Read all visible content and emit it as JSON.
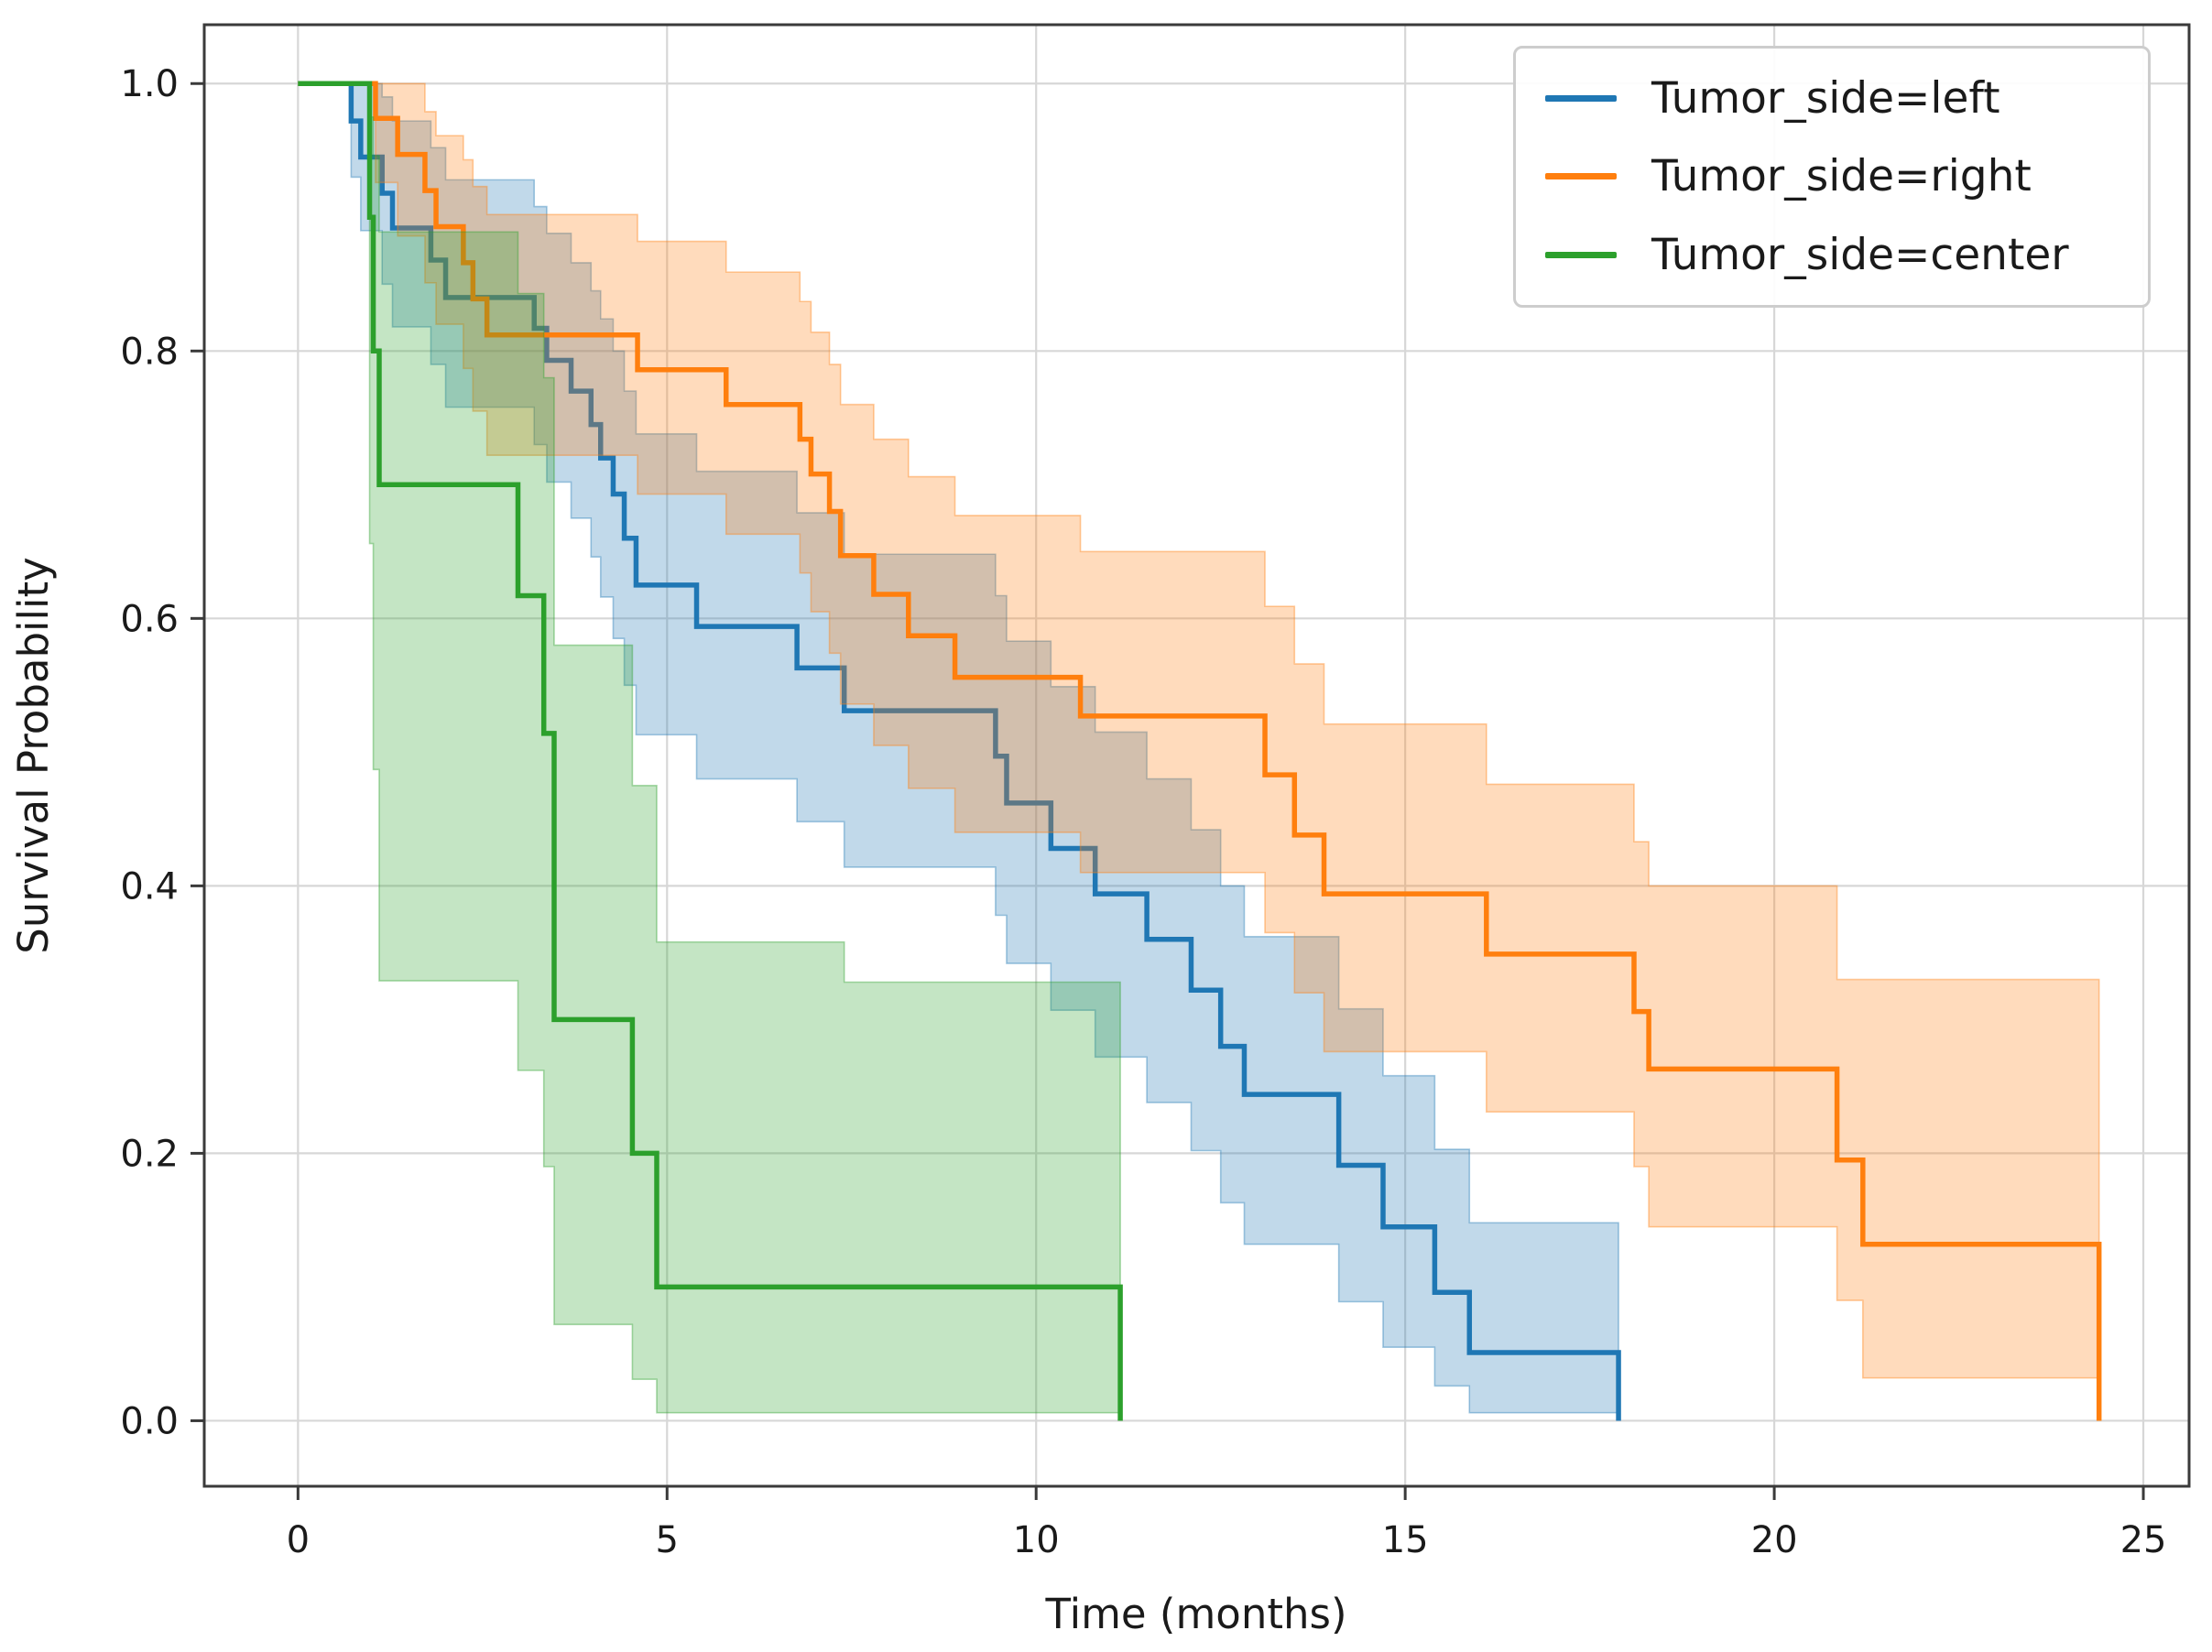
{
  "chart_data": {
    "type": "line",
    "subtype": "kaplan-meier-step-with-confidence-bands",
    "title": "",
    "xlabel": "Time (months)",
    "ylabel": "Survival Probability",
    "xlim": [
      -1.27,
      25.62
    ],
    "ylim": [
      -0.049,
      1.044
    ],
    "x_ticks": [
      0,
      5,
      10,
      15,
      20,
      25
    ],
    "x_tick_labels": [
      "0",
      "5",
      "10",
      "15",
      "20",
      "25"
    ],
    "y_ticks": [
      0.0,
      0.2,
      0.4,
      0.6,
      0.8,
      1.0
    ],
    "y_tick_labels": [
      "0.0",
      "0.2",
      "0.4",
      "0.6",
      "0.8",
      "1.0"
    ],
    "grid": true,
    "legend_position": "upper right",
    "background_color": "#ffffff",
    "grid_color": "#d7d7d7",
    "spine_color": "#3a3a3a",
    "text_color": "#1a1a1a",
    "band_fill_alpha": 0.28,
    "series": [
      {
        "key": "left",
        "name": "Tumor_side=left",
        "color": "#1f77b4",
        "end_time": 17.89,
        "steps": [
          {
            "t": 0.0,
            "s": 1.0,
            "lo": 1.0,
            "hi": 1.0
          },
          {
            "t": 0.72,
            "s": 0.972,
            "lo": 0.93,
            "hi": 1.0
          },
          {
            "t": 0.85,
            "s": 0.945,
            "lo": 0.89,
            "hi": 1.0
          },
          {
            "t": 1.14,
            "s": 0.918,
            "lo": 0.85,
            "hi": 0.99
          },
          {
            "t": 1.28,
            "s": 0.892,
            "lo": 0.818,
            "hi": 0.972
          },
          {
            "t": 1.8,
            "s": 0.868,
            "lo": 0.79,
            "hi": 0.952
          },
          {
            "t": 2.0,
            "s": 0.84,
            "lo": 0.758,
            "hi": 0.928
          },
          {
            "t": 3.2,
            "s": 0.817,
            "lo": 0.73,
            "hi": 0.908
          },
          {
            "t": 3.37,
            "s": 0.793,
            "lo": 0.702,
            "hi": 0.888
          },
          {
            "t": 3.7,
            "s": 0.77,
            "lo": 0.675,
            "hi": 0.866
          },
          {
            "t": 3.97,
            "s": 0.745,
            "lo": 0.646,
            "hi": 0.845
          },
          {
            "t": 4.1,
            "s": 0.72,
            "lo": 0.616,
            "hi": 0.824
          },
          {
            "t": 4.27,
            "s": 0.693,
            "lo": 0.585,
            "hi": 0.8
          },
          {
            "t": 4.42,
            "s": 0.66,
            "lo": 0.55,
            "hi": 0.77
          },
          {
            "t": 4.58,
            "s": 0.625,
            "lo": 0.513,
            "hi": 0.738
          },
          {
            "t": 5.4,
            "s": 0.594,
            "lo": 0.48,
            "hi": 0.71
          },
          {
            "t": 6.76,
            "s": 0.563,
            "lo": 0.448,
            "hi": 0.679
          },
          {
            "t": 7.4,
            "s": 0.531,
            "lo": 0.414,
            "hi": 0.648
          },
          {
            "t": 9.45,
            "s": 0.497,
            "lo": 0.378,
            "hi": 0.617
          },
          {
            "t": 9.6,
            "s": 0.462,
            "lo": 0.342,
            "hi": 0.583
          },
          {
            "t": 10.2,
            "s": 0.428,
            "lo": 0.307,
            "hi": 0.549
          },
          {
            "t": 10.8,
            "s": 0.394,
            "lo": 0.272,
            "hi": 0.515
          },
          {
            "t": 11.5,
            "s": 0.36,
            "lo": 0.238,
            "hi": 0.48
          },
          {
            "t": 12.1,
            "s": 0.322,
            "lo": 0.202,
            "hi": 0.442
          },
          {
            "t": 12.5,
            "s": 0.28,
            "lo": 0.163,
            "hi": 0.4
          },
          {
            "t": 12.82,
            "s": 0.244,
            "lo": 0.132,
            "hi": 0.362
          },
          {
            "t": 14.1,
            "s": 0.191,
            "lo": 0.089,
            "hi": 0.308
          },
          {
            "t": 14.7,
            "s": 0.145,
            "lo": 0.055,
            "hi": 0.258
          },
          {
            "t": 15.4,
            "s": 0.096,
            "lo": 0.026,
            "hi": 0.203
          },
          {
            "t": 15.87,
            "s": 0.051,
            "lo": 0.006,
            "hi": 0.148
          }
        ]
      },
      {
        "key": "right",
        "name": "Tumor_side=right",
        "color": "#ff7f0e",
        "end_time": 24.4,
        "steps": [
          {
            "t": 0.0,
            "s": 1.0,
            "lo": 1.0,
            "hi": 1.0
          },
          {
            "t": 1.05,
            "s": 0.974,
            "lo": 0.926,
            "hi": 1.0
          },
          {
            "t": 1.35,
            "s": 0.947,
            "lo": 0.886,
            "hi": 1.0
          },
          {
            "t": 1.72,
            "s": 0.92,
            "lo": 0.851,
            "hi": 0.979
          },
          {
            "t": 1.87,
            "s": 0.893,
            "lo": 0.82,
            "hi": 0.961
          },
          {
            "t": 2.24,
            "s": 0.866,
            "lo": 0.787,
            "hi": 0.943
          },
          {
            "t": 2.37,
            "s": 0.839,
            "lo": 0.755,
            "hi": 0.923
          },
          {
            "t": 2.56,
            "s": 0.812,
            "lo": 0.722,
            "hi": 0.902
          },
          {
            "t": 4.6,
            "s": 0.786,
            "lo": 0.693,
            "hi": 0.882
          },
          {
            "t": 5.8,
            "s": 0.76,
            "lo": 0.663,
            "hi": 0.859
          },
          {
            "t": 6.8,
            "s": 0.734,
            "lo": 0.634,
            "hi": 0.837
          },
          {
            "t": 6.95,
            "s": 0.708,
            "lo": 0.605,
            "hi": 0.814
          },
          {
            "t": 7.2,
            "s": 0.68,
            "lo": 0.574,
            "hi": 0.79
          },
          {
            "t": 7.35,
            "s": 0.647,
            "lo": 0.536,
            "hi": 0.76
          },
          {
            "t": 7.8,
            "s": 0.618,
            "lo": 0.505,
            "hi": 0.734
          },
          {
            "t": 8.27,
            "s": 0.587,
            "lo": 0.473,
            "hi": 0.706
          },
          {
            "t": 8.9,
            "s": 0.556,
            "lo": 0.44,
            "hi": 0.677
          },
          {
            "t": 10.6,
            "s": 0.527,
            "lo": 0.41,
            "hi": 0.65
          },
          {
            "t": 13.1,
            "s": 0.483,
            "lo": 0.365,
            "hi": 0.609
          },
          {
            "t": 13.5,
            "s": 0.438,
            "lo": 0.32,
            "hi": 0.566
          },
          {
            "t": 13.9,
            "s": 0.394,
            "lo": 0.276,
            "hi": 0.521
          },
          {
            "t": 16.1,
            "s": 0.349,
            "lo": 0.231,
            "hi": 0.476
          },
          {
            "t": 18.1,
            "s": 0.306,
            "lo": 0.19,
            "hi": 0.433
          },
          {
            "t": 18.3,
            "s": 0.263,
            "lo": 0.145,
            "hi": 0.4
          },
          {
            "t": 20.85,
            "s": 0.195,
            "lo": 0.09,
            "hi": 0.33
          },
          {
            "t": 21.2,
            "s": 0.132,
            "lo": 0.032,
            "hi": 0.33
          }
        ]
      },
      {
        "key": "center",
        "name": "Tumor_side=center",
        "color": "#2ca02c",
        "end_time": 11.14,
        "steps": [
          {
            "t": 0.0,
            "s": 1.0,
            "lo": 1.0,
            "hi": 1.0
          },
          {
            "t": 0.97,
            "s": 0.9,
            "lo": 0.656,
            "hi": 0.975
          },
          {
            "t": 1.02,
            "s": 0.8,
            "lo": 0.487,
            "hi": 0.946
          },
          {
            "t": 1.1,
            "s": 0.7,
            "lo": 0.329,
            "hi": 0.889
          },
          {
            "t": 2.98,
            "s": 0.617,
            "lo": 0.262,
            "hi": 0.843
          },
          {
            "t": 3.33,
            "s": 0.514,
            "lo": 0.19,
            "hi": 0.78
          },
          {
            "t": 3.47,
            "s": 0.3,
            "lo": 0.072,
            "hi": 0.58
          },
          {
            "t": 4.53,
            "s": 0.2,
            "lo": 0.031,
            "hi": 0.475
          },
          {
            "t": 4.86,
            "s": 0.1,
            "lo": 0.006,
            "hi": 0.358
          },
          {
            "t": 7.4,
            "s": 0.1,
            "lo": 0.006,
            "hi": 0.328
          }
        ]
      }
    ]
  }
}
